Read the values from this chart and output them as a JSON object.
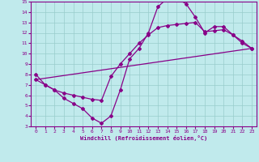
{
  "xlabel": "Windchill (Refroidissement éolien,°C)",
  "bg_color": "#c0eaec",
  "grid_color": "#99cccc",
  "line_color": "#880088",
  "spine_color": "#880088",
  "xlim": [
    -0.5,
    23.5
  ],
  "ylim": [
    3,
    15
  ],
  "xticks": [
    0,
    1,
    2,
    3,
    4,
    5,
    6,
    7,
    8,
    9,
    10,
    11,
    12,
    13,
    14,
    15,
    16,
    17,
    18,
    19,
    20,
    21,
    22,
    23
  ],
  "yticks": [
    3,
    4,
    5,
    6,
    7,
    8,
    9,
    10,
    11,
    12,
    13,
    14,
    15
  ],
  "curve1_x": [
    0,
    1,
    2,
    3,
    4,
    5,
    6,
    7,
    8,
    9,
    10,
    11,
    12,
    13,
    14,
    15,
    16,
    17,
    18,
    19,
    20,
    21,
    22,
    23
  ],
  "curve1_y": [
    8.0,
    7.0,
    6.5,
    5.7,
    5.2,
    4.7,
    3.8,
    3.3,
    4.0,
    6.5,
    9.5,
    10.5,
    12.0,
    14.5,
    15.3,
    15.3,
    14.8,
    13.5,
    12.0,
    12.6,
    12.6,
    11.8,
    11.0,
    10.5
  ],
  "curve2_x": [
    0,
    23
  ],
  "curve2_y": [
    7.5,
    10.5
  ],
  "curve3_x": [
    0,
    1,
    2,
    3,
    4,
    5,
    6,
    7,
    8,
    9,
    10,
    11,
    12,
    13,
    14,
    15,
    16,
    17,
    18,
    19,
    20,
    21,
    22,
    23
  ],
  "curve3_y": [
    7.5,
    7.0,
    6.5,
    6.2,
    6.0,
    5.8,
    5.6,
    5.5,
    7.8,
    9.0,
    10.0,
    11.0,
    11.8,
    12.5,
    12.7,
    12.8,
    12.9,
    13.0,
    12.1,
    12.2,
    12.3,
    11.8,
    11.2,
    10.5
  ]
}
